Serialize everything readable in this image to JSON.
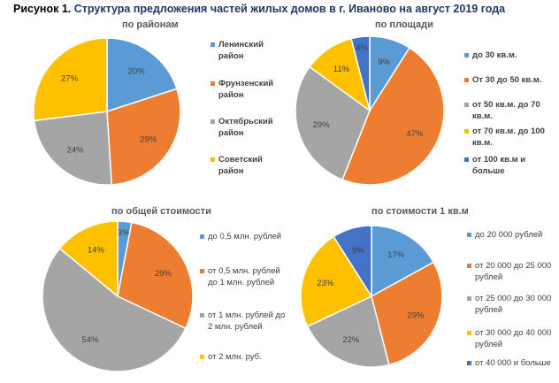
{
  "title_lead": "Рисунок 1.",
  "title": "Структура предложения частей жилых домов в г. Иваново на август 2019 года",
  "chart_data": [
    {
      "type": "pie",
      "title": "по районам",
      "categories": [
        "Ленинский район",
        "Фрунзенский район",
        "Октябрьский район",
        "Советский район"
      ],
      "values": [
        20,
        29,
        24,
        27
      ],
      "colors": [
        "#5b9bd5",
        "#ed7d31",
        "#a5a5a5",
        "#ffc000"
      ],
      "legend": "right"
    },
    {
      "type": "pie",
      "title": "по площади",
      "categories": [
        "до 30 кв.м.",
        "От 30 до 50 кв.м.",
        "от 50 кв.м. до 70 кв.м.",
        "от 70 кв.м. до 100 кв.м.",
        "от 100 кв.м и больше"
      ],
      "values": [
        9,
        47,
        29,
        11,
        4
      ],
      "colors": [
        "#5b9bd5",
        "#ed7d31",
        "#a5a5a5",
        "#ffc000",
        "#4472c4"
      ],
      "legend": "right"
    },
    {
      "type": "pie",
      "title": "по общей стоимости",
      "categories": [
        "до 0,5 млн. рублей",
        "от 0,5 млн. рублей до 1 млн. рублей",
        "от 1 млн. рублей до 2 млн. рублей",
        "от 2 млн. руб."
      ],
      "values": [
        3,
        29,
        54,
        14
      ],
      "colors": [
        "#5b9bd5",
        "#ed7d31",
        "#a5a5a5",
        "#ffc000"
      ],
      "legend": "right"
    },
    {
      "type": "pie",
      "title": "по стоимости 1 кв.м",
      "categories": [
        "до 20 000 рублей",
        "от 20 000 до 25 000 рублей",
        "от 25 000 до 30 000 рублей",
        "от 30 000 до 40 000 рублей",
        "от 40 000 и больше"
      ],
      "values": [
        17,
        29,
        22,
        23,
        9
      ],
      "colors": [
        "#5b9bd5",
        "#ed7d31",
        "#a5a5a5",
        "#ffc000",
        "#4472c4"
      ],
      "legend": "right"
    }
  ]
}
